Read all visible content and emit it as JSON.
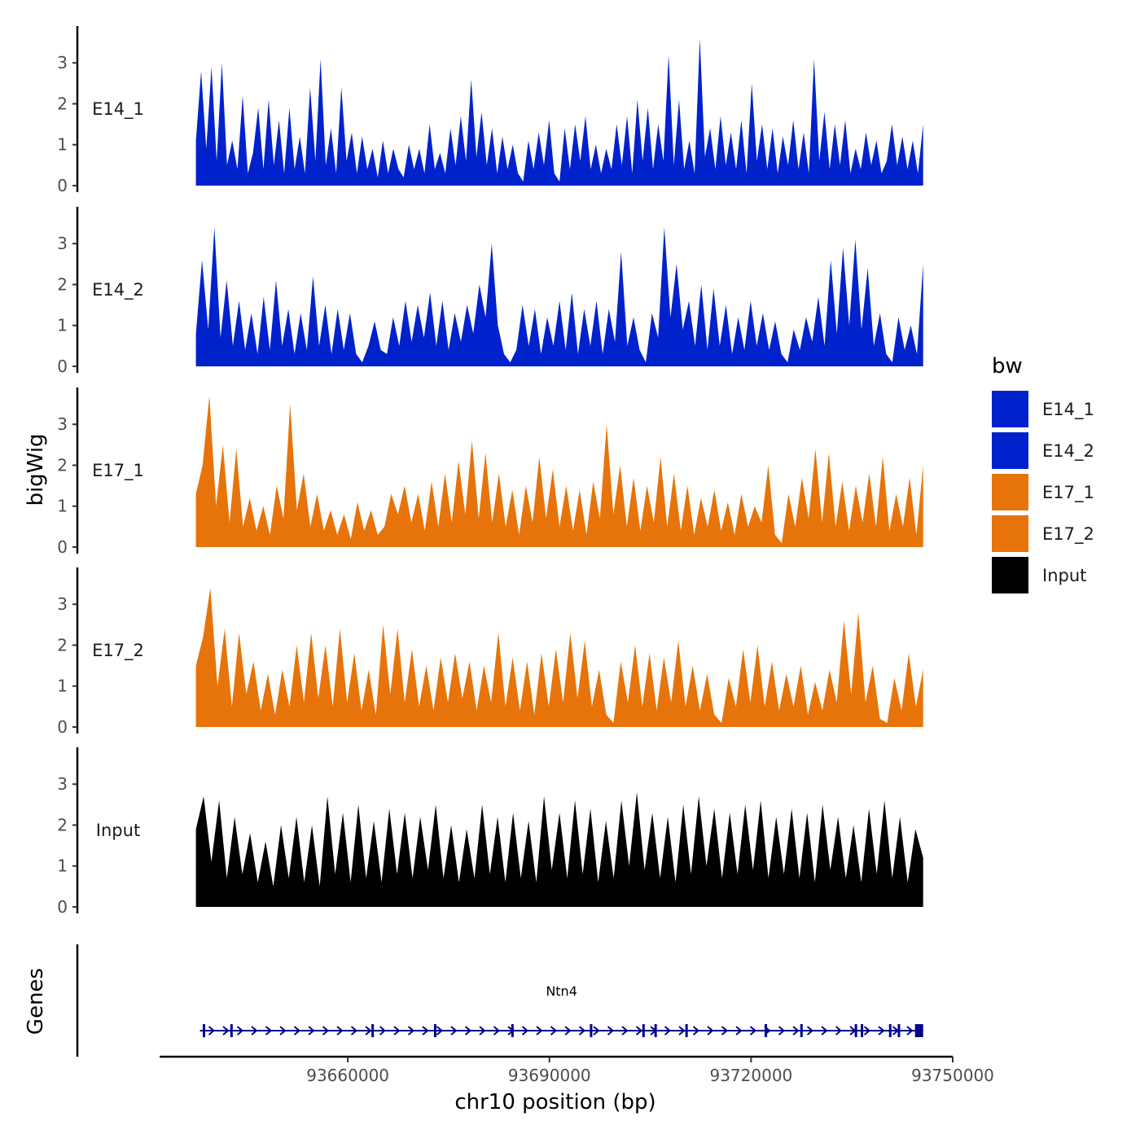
{
  "chart_data": {
    "type": "area",
    "title": "",
    "xlabel": "chr10 position (bp)",
    "ylabel": "bigWig",
    "genes_label": "Genes",
    "legend": {
      "title": "bw",
      "position": "right",
      "entries": [
        {
          "name": "E14_1",
          "color": "#0022cc"
        },
        {
          "name": "E14_2",
          "color": "#0022cc"
        },
        {
          "name": "E17_1",
          "color": "#e6740a"
        },
        {
          "name": "E17_2",
          "color": "#e6740a"
        },
        {
          "name": "Input",
          "color": "#000000"
        }
      ]
    },
    "xlim": [
      93632000,
      93750000
    ],
    "x_ticks": [
      93660000,
      93690000,
      93720000,
      93750000
    ],
    "x_tick_labels": [
      "93660000",
      "93690000",
      "93720000",
      "93750000"
    ],
    "signal_range": [
      93637400,
      93745600
    ],
    "ylim": [
      0,
      3.9
    ],
    "y_ticks": [
      0,
      1,
      2,
      3
    ],
    "y_tick_labels": [
      "0",
      "1",
      "2",
      "3"
    ],
    "series": [
      {
        "name": "E14_1",
        "color": "#0022cc",
        "values": [
          1.1,
          2.8,
          0.9,
          2.9,
          0.6,
          3.0,
          0.5,
          1.1,
          0.4,
          2.2,
          0.3,
          0.8,
          1.9,
          0.4,
          2.1,
          0.5,
          1.6,
          0.3,
          1.9,
          0.4,
          1.2,
          0.3,
          2.4,
          0.6,
          3.1,
          0.5,
          1.4,
          0.3,
          2.4,
          0.6,
          1.3,
          0.3,
          1.2,
          0.4,
          0.9,
          0.2,
          1.1,
          0.3,
          0.9,
          0.4,
          0.2,
          1.0,
          0.4,
          0.9,
          0.3,
          1.5,
          0.4,
          0.8,
          0.3,
          1.4,
          0.5,
          1.7,
          0.6,
          2.6,
          0.7,
          1.8,
          0.5,
          1.4,
          0.3,
          1.2,
          0.4,
          1.0,
          0.3,
          0.1,
          1.1,
          0.4,
          1.3,
          0.5,
          1.6,
          0.3,
          0.1,
          1.4,
          0.4,
          1.5,
          0.6,
          1.7,
          0.4,
          1.0,
          0.3,
          0.9,
          0.4,
          1.5,
          0.5,
          1.7,
          0.3,
          2.1,
          0.6,
          1.9,
          0.4,
          1.5,
          0.6,
          3.2,
          0.5,
          2.1,
          0.4,
          1.1,
          0.3,
          3.6,
          0.7,
          1.4,
          0.4,
          1.7,
          0.5,
          1.3,
          0.4,
          1.6,
          0.3,
          2.5,
          0.6,
          1.5,
          0.4,
          1.4,
          0.3,
          1.2,
          0.5,
          1.6,
          0.4,
          1.3,
          0.3,
          3.1,
          0.6,
          1.8,
          0.4,
          1.5,
          0.5,
          1.6,
          0.3,
          0.9,
          0.4,
          1.3,
          0.5,
          1.1,
          0.3,
          0.6,
          1.5,
          0.5,
          1.2,
          0.4,
          1.1,
          0.3,
          1.5
        ]
      },
      {
        "name": "E14_2",
        "color": "#0022cc",
        "values": [
          0.8,
          2.6,
          0.9,
          3.4,
          0.7,
          2.1,
          0.5,
          1.6,
          0.4,
          1.3,
          0.3,
          1.7,
          0.4,
          2.1,
          0.5,
          1.4,
          0.3,
          1.3,
          0.4,
          2.2,
          0.5,
          1.5,
          0.3,
          1.4,
          0.4,
          1.3,
          0.3,
          0.1,
          0.5,
          1.1,
          0.4,
          0.3,
          1.2,
          0.5,
          1.6,
          0.6,
          1.5,
          0.7,
          1.8,
          0.5,
          1.6,
          0.4,
          1.3,
          0.6,
          1.5,
          0.8,
          2.0,
          1.2,
          3.0,
          1.0,
          0.3,
          0.1,
          0.4,
          1.5,
          0.5,
          1.4,
          0.3,
          1.2,
          0.5,
          1.6,
          0.4,
          1.8,
          0.3,
          1.4,
          0.5,
          1.6,
          0.3,
          1.4,
          0.6,
          2.8,
          0.5,
          1.2,
          0.4,
          0.1,
          1.3,
          0.7,
          3.4,
          1.2,
          2.5,
          0.9,
          1.6,
          0.5,
          2.0,
          0.4,
          1.9,
          0.5,
          1.5,
          0.3,
          1.2,
          0.4,
          1.6,
          0.5,
          1.3,
          0.4,
          1.1,
          0.3,
          0.1,
          0.9,
          0.4,
          1.2,
          0.6,
          1.7,
          0.5,
          2.6,
          0.8,
          2.9,
          1.0,
          3.1,
          0.9,
          2.4,
          0.5,
          1.3,
          0.3,
          0.1,
          1.2,
          0.4,
          1.0,
          0.3,
          2.5
        ]
      },
      {
        "name": "E17_1",
        "color": "#e6740a",
        "values": [
          1.3,
          2.0,
          3.7,
          1.0,
          2.5,
          0.6,
          2.4,
          0.5,
          1.2,
          0.4,
          1.0,
          0.3,
          1.5,
          0.7,
          3.5,
          0.9,
          1.8,
          0.5,
          1.3,
          0.4,
          0.9,
          0.3,
          0.8,
          0.2,
          1.1,
          0.4,
          0.9,
          0.3,
          0.5,
          1.3,
          0.8,
          1.5,
          0.6,
          1.3,
          0.4,
          1.6,
          0.5,
          1.8,
          0.6,
          2.1,
          0.8,
          2.6,
          0.7,
          2.3,
          0.6,
          1.8,
          0.5,
          1.4,
          0.3,
          1.5,
          0.6,
          2.2,
          0.7,
          1.9,
          0.5,
          1.5,
          0.4,
          1.4,
          0.3,
          1.6,
          0.7,
          3.0,
          0.8,
          2.0,
          0.5,
          1.7,
          0.4,
          1.5,
          0.6,
          2.2,
          0.5,
          1.8,
          0.4,
          1.5,
          0.3,
          1.2,
          0.5,
          1.4,
          0.4,
          1.1,
          0.3,
          1.3,
          0.5,
          1.0,
          0.6,
          2.0,
          0.3,
          0.1,
          1.3,
          0.5,
          1.7,
          0.7,
          2.4,
          0.6,
          2.3,
          0.5,
          1.6,
          0.4,
          1.5,
          0.6,
          1.8,
          0.5,
          2.2,
          0.4,
          1.3,
          0.5,
          1.7,
          0.3,
          2.0
        ]
      },
      {
        "name": "E17_2",
        "color": "#e6740a",
        "values": [
          1.5,
          2.2,
          3.4,
          1.0,
          2.4,
          0.5,
          2.3,
          0.8,
          1.6,
          0.4,
          1.3,
          0.3,
          1.4,
          0.5,
          2.0,
          0.6,
          2.3,
          0.7,
          2.0,
          0.5,
          2.4,
          0.6,
          1.8,
          0.4,
          1.4,
          0.3,
          2.5,
          0.8,
          2.4,
          0.6,
          1.9,
          0.5,
          1.5,
          0.4,
          1.7,
          0.6,
          1.8,
          0.7,
          1.6,
          0.4,
          1.5,
          0.6,
          2.3,
          0.5,
          1.7,
          0.4,
          1.6,
          0.3,
          1.8,
          0.5,
          1.9,
          0.6,
          2.3,
          0.7,
          2.1,
          0.5,
          1.4,
          0.3,
          0.1,
          1.6,
          0.6,
          2.0,
          0.5,
          1.8,
          0.4,
          1.7,
          0.6,
          2.1,
          0.5,
          1.5,
          0.4,
          1.3,
          0.3,
          0.1,
          1.2,
          0.5,
          1.9,
          0.6,
          2.0,
          0.5,
          1.6,
          0.4,
          1.3,
          0.5,
          1.5,
          0.3,
          1.1,
          0.4,
          1.4,
          0.6,
          2.6,
          0.8,
          2.8,
          0.6,
          1.5,
          0.2,
          0.1,
          1.2,
          0.4,
          1.8,
          0.5,
          1.4
        ]
      },
      {
        "name": "Input",
        "color": "#000000",
        "values": [
          1.9,
          2.7,
          1.1,
          2.6,
          0.7,
          2.2,
          0.8,
          1.8,
          0.6,
          1.6,
          0.5,
          2.0,
          0.7,
          2.2,
          0.6,
          2.0,
          0.5,
          2.7,
          0.8,
          2.3,
          0.6,
          2.5,
          0.7,
          2.1,
          0.6,
          2.4,
          0.8,
          2.3,
          0.7,
          2.2,
          0.9,
          2.5,
          0.7,
          2.0,
          0.6,
          1.9,
          0.7,
          2.5,
          0.8,
          2.2,
          0.6,
          2.3,
          0.7,
          2.1,
          0.6,
          2.7,
          0.9,
          2.3,
          0.7,
          2.6,
          0.8,
          2.4,
          0.6,
          2.1,
          0.7,
          2.6,
          1.0,
          2.8,
          0.9,
          2.3,
          0.7,
          2.2,
          0.6,
          2.5,
          0.8,
          2.7,
          1.0,
          2.4,
          0.7,
          2.3,
          0.8,
          2.5,
          0.9,
          2.6,
          0.7,
          2.2,
          0.8,
          2.4,
          0.7,
          2.3,
          0.6,
          2.5,
          0.9,
          2.2,
          0.7,
          2.0,
          0.6,
          2.4,
          0.8,
          2.6,
          0.7,
          2.2,
          0.6,
          1.9,
          1.2
        ]
      }
    ],
    "genes": [
      {
        "name": "Ntn4",
        "start": 93638000,
        "end": 93745600,
        "strand": "+",
        "exons": [
          93638600,
          93642700,
          93663700,
          93673000,
          93684500,
          93696200,
          93704000,
          93705800,
          93710400,
          93722200,
          93727500,
          93735600,
          93736500,
          93740700,
          93742000
        ]
      }
    ]
  }
}
